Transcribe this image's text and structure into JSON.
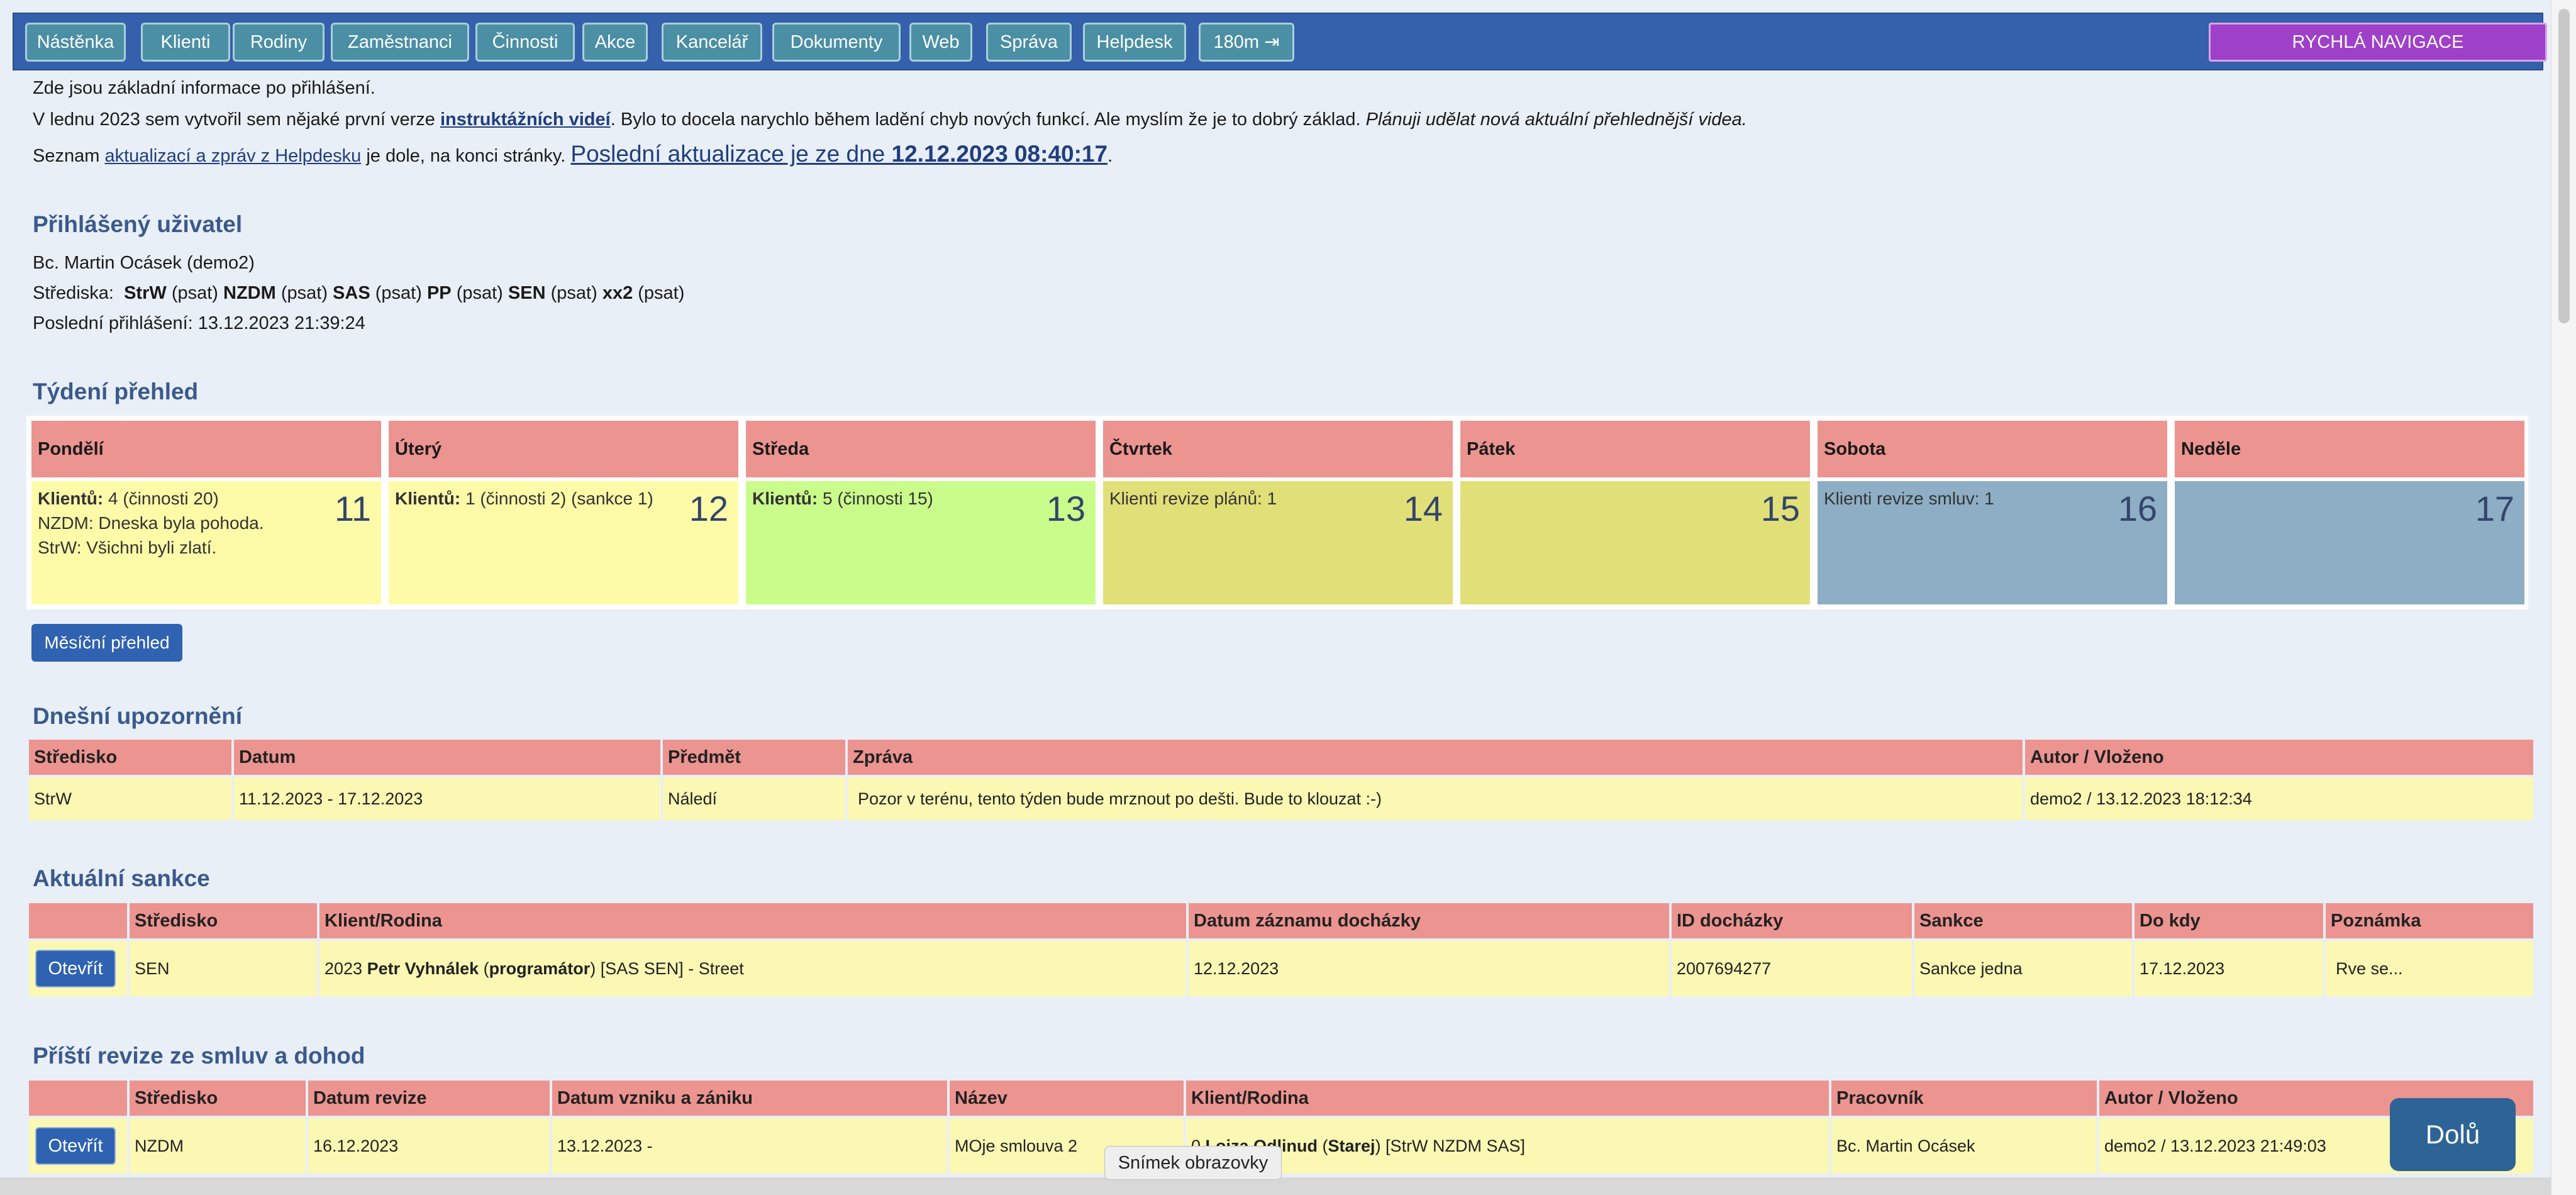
{
  "nav": {
    "buttons": [
      "Nástěnka",
      "Klienti",
      "Rodiny",
      "Zaměstnanci",
      "Činnosti",
      "Akce",
      "Kancelář",
      "Dokumenty",
      "Web",
      "Správa",
      "Helpdesk",
      "180m ⇥"
    ],
    "quick": "RYCHLÁ NAVIGACE"
  },
  "intro": {
    "line1": "Zde jsou základní informace po přihlášení.",
    "line2_pre": "V lednu 2023 sem vytvořil sem nějaké první verze ",
    "line2_link": "instruktážních videí",
    "line2_mid": ". Bylo to docela narychlo během ladění chyb nových funkcí. Ale myslím že je to dobrý základ. ",
    "line2_em": "Plánuji udělat nová aktuální přehlednější videa.",
    "line3_pre": "Seznam ",
    "line3_link": "aktualizací a zpráv z Helpdesku",
    "line3_mid": " je dole, na konci stránky. ",
    "line3_red": "Poslední aktualizace je ze dne ",
    "line3_date": "12.12.2023 08:40:17",
    "line3_end": "."
  },
  "user": {
    "heading": "Přihlášený uživatel",
    "name": "Bc. Martin Ocásek (demo2)",
    "centres_label": "Střediska:",
    "centres": [
      {
        "code": "StrW",
        "note": "(psat)"
      },
      {
        "code": "NZDM",
        "note": "(psat)"
      },
      {
        "code": "SAS",
        "note": "(psat)"
      },
      {
        "code": "PP",
        "note": "(psat)"
      },
      {
        "code": "SEN",
        "note": "(psat)"
      },
      {
        "code": "xx2",
        "note": "(psat)"
      }
    ],
    "last_login": "Poslední přihlášení: 13.12.2023 21:39:24"
  },
  "week": {
    "heading": "Týdení přehled",
    "days": [
      {
        "name": "Pondělí",
        "num": "11",
        "color": "#fdfba8",
        "lines": [
          {
            "b": "Klientů:",
            "t": " 4 (činnosti 20)"
          },
          {
            "b": "",
            "t": "NZDM: Dneska byla pohoda."
          },
          {
            "b": "",
            "t": "StrW: Všichni byli zlatí."
          }
        ]
      },
      {
        "name": "Úterý",
        "num": "12",
        "color": "#fdfba8",
        "lines": [
          {
            "b": "Klientů:",
            "t": " 1 (činnosti 2) (sankce 1)"
          }
        ]
      },
      {
        "name": "Středa",
        "num": "13",
        "color": "#cafc8c",
        "lines": [
          {
            "b": "Klientů:",
            "t": " 5 (činnosti 15)"
          }
        ]
      },
      {
        "name": "Čtvrtek",
        "num": "14",
        "color": "#e1df78",
        "lines": [
          {
            "b": "",
            "t": "Klienti revize plánů: 1"
          }
        ]
      },
      {
        "name": "Pátek",
        "num": "15",
        "color": "#e1df78",
        "lines": []
      },
      {
        "name": "Sobota",
        "num": "16",
        "color": "#8daec4",
        "lines": [
          {
            "b": "",
            "t": "Klienti revize smluv: 1"
          }
        ]
      },
      {
        "name": "Neděle",
        "num": "17",
        "color": "#8daec4",
        "lines": []
      }
    ],
    "monthly_button": "Měsíční přehled"
  },
  "alerts": {
    "heading": "Dnešní upozornění",
    "columns": [
      "Středisko",
      "Datum",
      "Předmět",
      "Zpráva",
      "Autor / Vloženo"
    ],
    "rows": [
      [
        "StrW",
        "11.12.2023 - 17.12.2023",
        "Náledí",
        "Pozor v terénu, tento týden bude mrznout po dešti. Bude to klouzat :-)",
        "demo2 / 13.12.2023 18:12:34"
      ]
    ]
  },
  "sanctions": {
    "heading": "Aktuální sankce",
    "columns": [
      "",
      "Středisko",
      "Klient/Rodina",
      "Datum záznamu docházky",
      "ID docházky",
      "Sankce",
      "Do kdy",
      "Poznámka"
    ],
    "open": "Otevřít",
    "row": {
      "centre": "SEN",
      "client_pre": "2023 ",
      "client_b": "Petr Vyhnálek",
      "client_p1": " (",
      "client_b2": "programátor",
      "client_rest": ") [SAS SEN] - Street",
      "date": "12.12.2023",
      "id": "2007694277",
      "sanction": "Sankce jedna",
      "until": "17.12.2023",
      "note": "Rve se..."
    }
  },
  "revisions": {
    "heading": "Příští revize ze smluv a dohod",
    "columns": [
      "",
      "Středisko",
      "Datum revize",
      "Datum vzniku a zániku",
      "Název",
      "Klient/Rodina",
      "Pracovník",
      "Autor / Vloženo"
    ],
    "open": "Otevřít",
    "row": {
      "centre": "NZDM",
      "date": "16.12.2023",
      "range": "13.12.2023 -",
      "name": "MOje smlouva 2",
      "client_pre": "0 ",
      "client_b": "Lojza Odlinud",
      "client_p1": " (",
      "client_b2": "Starej",
      "client_rest": ") [StrW NZDM SAS]",
      "worker": "Bc. Martin Ocásek",
      "author": "demo2 / 13.12.2023 21:49:03"
    }
  },
  "floating": {
    "down": "Dolů",
    "tooltip": "Snímek obrazovky"
  }
}
